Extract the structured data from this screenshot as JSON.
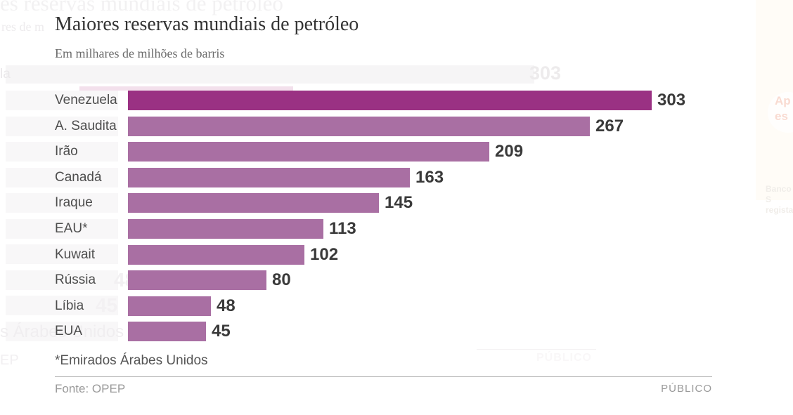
{
  "chart_data": {
    "type": "bar",
    "orientation": "horizontal",
    "title": "Maiores reservas mundiais de petróleo",
    "subtitle": "Em milhares de milhões de barris",
    "categories": [
      "Venezuela",
      "A. Saudita",
      "Irão",
      "Canadá",
      "Iraque",
      "EAU*",
      "Kuwait",
      "Rússia",
      "Líbia",
      "EUA"
    ],
    "values": [
      303,
      267,
      209,
      163,
      145,
      113,
      102,
      80,
      48,
      45
    ],
    "value_labels_shown": true,
    "highlight_index": 0,
    "colors": {
      "highlight": "#9a3183",
      "bar": "#a96fa3"
    },
    "xlim": [
      0,
      310
    ],
    "grid": false,
    "legend": "none"
  },
  "footer": {
    "footnote": "*Emirados Árabes Unidos",
    "source": "Fonte: OPEP",
    "credit": "PÚBLICO"
  },
  "background_remnants": {
    "title_fragment": "es reservas mundiais de petróleo",
    "subtitle_fragment": "res de m",
    "top_value": "303",
    "label_fragment": "la",
    "value_48": "48",
    "value_45": "45",
    "footnote_fragment": "s Árabes Unidos",
    "source_fragment": "EP",
    "credit": "PÚBLICO",
    "promo_line1": "Ap",
    "promo_line2": "es",
    "card_line1": "Banco S",
    "card_line2": "registad"
  }
}
